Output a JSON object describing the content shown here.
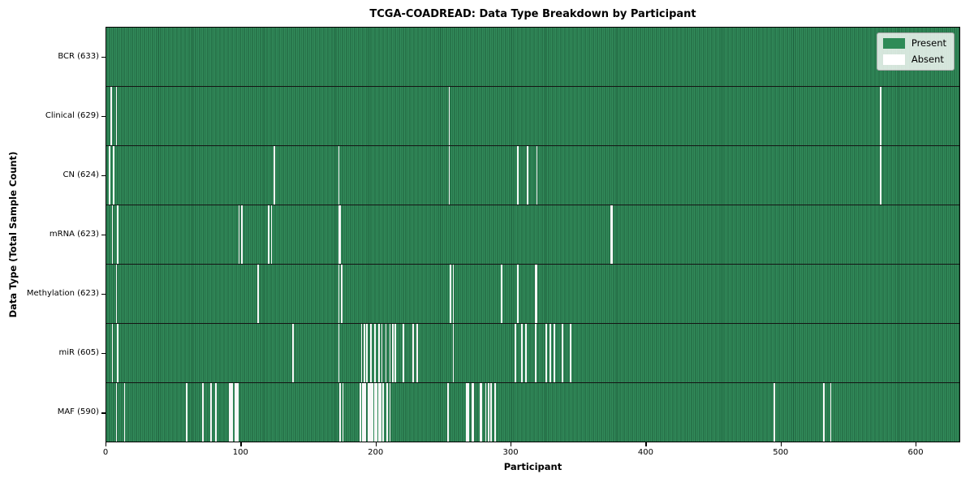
{
  "chart_data": {
    "type": "heatmap",
    "title": "TCGA-COADREAD: Data Type Breakdown by Participant",
    "xlabel": "Participant",
    "ylabel": "Data Type (Total Sample Count)",
    "x_ticks": [
      0,
      100,
      200,
      300,
      400,
      500,
      600
    ],
    "n_participants": 633,
    "grid": false,
    "legend_position": "upper right",
    "legend": {
      "present_label": "Present",
      "absent_label": "Absent",
      "present_color": "#2e8b57",
      "absent_color": "#f8f8f8"
    },
    "rows": [
      {
        "data_type": "BCR",
        "label": "BCR (633)",
        "present_count": 633,
        "absent_count": 0,
        "absent_participants": []
      },
      {
        "data_type": "Clinical",
        "label": "Clinical (629)",
        "present_count": 629,
        "absent_count": 4,
        "absent_participants": [
          3,
          7,
          254,
          574
        ]
      },
      {
        "data_type": "CN",
        "label": "CN (624)",
        "present_count": 624,
        "absent_count": 9,
        "absent_participants": [
          2,
          5,
          124,
          172,
          254,
          305,
          312,
          319,
          574
        ]
      },
      {
        "data_type": "mRNA",
        "label": "mRNA (623)",
        "present_count": 623,
        "absent_count": 10,
        "absent_participants": [
          4,
          8,
          98,
          100,
          120,
          122,
          172,
          173,
          374,
          375
        ]
      },
      {
        "data_type": "Methylation",
        "label": "Methylation (623)",
        "present_count": 623,
        "absent_count": 10,
        "absent_participants": [
          7,
          112,
          172,
          174,
          255,
          257,
          293,
          305,
          318,
          319
        ]
      },
      {
        "data_type": "miR",
        "label": "miR (605)",
        "present_count": 605,
        "absent_count": 28,
        "absent_participants": [
          4,
          8,
          138,
          172,
          189,
          191,
          193,
          196,
          199,
          202,
          204,
          207,
          210,
          212,
          214,
          220,
          227,
          230,
          257,
          303,
          308,
          311,
          318,
          326,
          329,
          332,
          338,
          344
        ]
      },
      {
        "data_type": "MAF",
        "label": "MAF (590)",
        "present_count": 590,
        "absent_count": 43,
        "absent_participants": [
          7,
          13,
          59,
          71,
          77,
          81,
          91,
          92,
          93,
          95,
          96,
          97,
          173,
          175,
          188,
          190,
          191,
          192,
          194,
          195,
          196,
          197,
          199,
          200,
          202,
          203,
          205,
          208,
          210,
          253,
          267,
          268,
          271,
          272,
          277,
          278,
          281,
          283,
          285,
          288,
          495,
          532,
          537
        ]
      }
    ]
  }
}
